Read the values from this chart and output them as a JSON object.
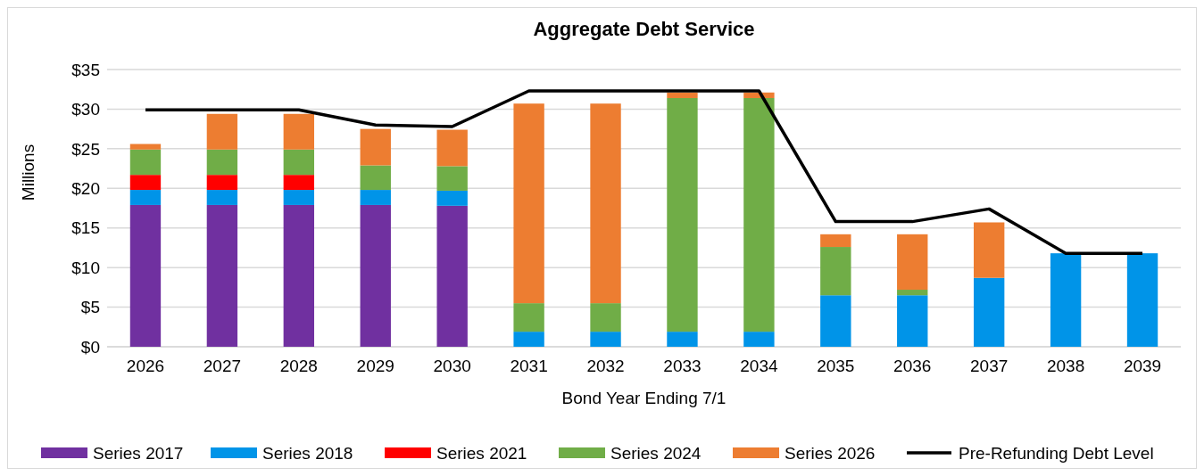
{
  "chart_data": {
    "type": "bar",
    "title": "Aggregate Debt Service",
    "xlabel": "Bond Year Ending 7/1",
    "ylabel": "Millions",
    "stacked": true,
    "grid": "y",
    "legend": "bottom",
    "categories": [
      "2026",
      "2027",
      "2028",
      "2029",
      "2030",
      "2031",
      "2032",
      "2033",
      "2034",
      "2035",
      "2036",
      "2037",
      "2038",
      "2039"
    ],
    "ylim": [
      0,
      35
    ],
    "yticks": [
      {
        "value": 0,
        "label": "$0"
      },
      {
        "value": 5,
        "label": "$5"
      },
      {
        "value": 10,
        "label": "$10"
      },
      {
        "value": 15,
        "label": "$15"
      },
      {
        "value": 20,
        "label": "$20"
      },
      {
        "value": 25,
        "label": "$25"
      },
      {
        "value": 30,
        "label": "$30"
      },
      {
        "value": 35,
        "label": "$35"
      }
    ],
    "series": [
      {
        "name": "Series 2017",
        "color": "#7030a0",
        "values": [
          17.9,
          17.9,
          17.9,
          17.9,
          17.8,
          null,
          null,
          null,
          null,
          null,
          null,
          null,
          null,
          null
        ]
      },
      {
        "name": "Series 2018",
        "color": "#0094e8",
        "values": [
          1.9,
          1.9,
          1.9,
          1.9,
          1.9,
          1.9,
          1.9,
          1.9,
          1.9,
          6.5,
          6.5,
          8.7,
          11.8,
          11.8
        ]
      },
      {
        "name": "Series 2021",
        "color": "#ff0000",
        "values": [
          1.9,
          1.9,
          1.9,
          null,
          null,
          null,
          null,
          null,
          null,
          null,
          null,
          null,
          null,
          null
        ]
      },
      {
        "name": "Series 2024",
        "color": "#70ad47",
        "values": [
          3.2,
          3.2,
          3.2,
          3.1,
          3.1,
          3.6,
          3.6,
          29.5,
          29.5,
          6.1,
          0.7,
          null,
          null,
          null
        ]
      },
      {
        "name": "Series 2026",
        "color": "#ed7d31",
        "values": [
          0.7,
          4.5,
          4.5,
          4.6,
          4.6,
          25.2,
          25.2,
          0.7,
          0.7,
          1.6,
          7.0,
          7.0,
          null,
          null
        ]
      },
      {
        "name": "Pre-Refunding Debt Level",
        "type": "line",
        "color": "#000000",
        "marker": "none",
        "line_style": "solid",
        "values": [
          29.9,
          29.9,
          29.9,
          28.0,
          27.8,
          32.3,
          32.3,
          32.3,
          32.3,
          15.8,
          15.8,
          17.4,
          11.8,
          11.8
        ]
      }
    ]
  }
}
